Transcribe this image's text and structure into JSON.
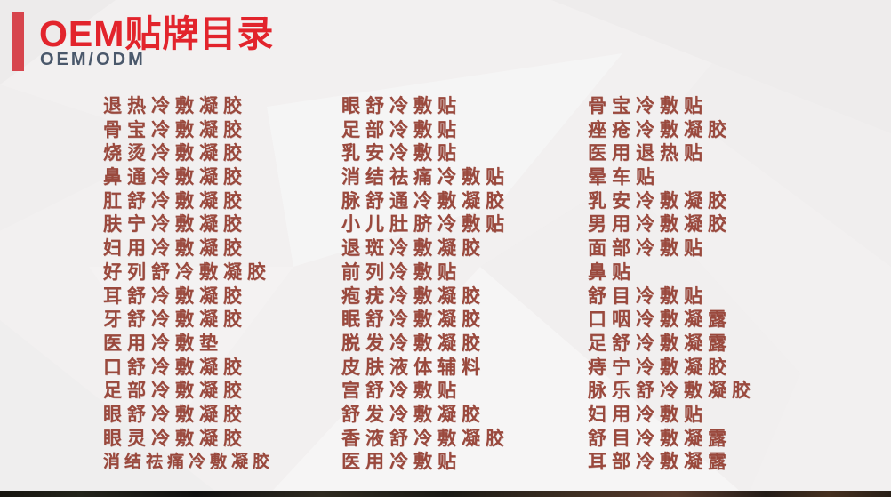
{
  "header": {
    "title": "OEM贴牌目录",
    "subtitle": "OEM/ODM"
  },
  "catalog": {
    "columns": [
      {
        "items": [
          "退热冷敷凝胶",
          "骨宝冷敷凝胶",
          "烧烫冷敷凝胶",
          "鼻通冷敷凝胶",
          "肛舒冷敷凝胶",
          "肤宁冷敷凝胶",
          "妇用冷敷凝胶",
          "好列舒冷敷凝胶",
          "耳舒冷敷凝胶",
          "牙舒冷敷凝胶",
          "医用冷敷垫",
          "口舒冷敷凝胶",
          "足部冷敷凝胶",
          "眼舒冷敷凝胶",
          "眼灵冷敷凝胶",
          "消结祛痛冷敷凝胶"
        ]
      },
      {
        "items": [
          "眼舒冷敷贴",
          "足部冷敷贴",
          "乳安冷敷贴",
          "消结祛痛冷敷贴",
          "脉舒通冷敷凝胶",
          "小儿肚脐冷敷贴",
          "退斑冷敷凝胶",
          "前列冷敷贴",
          "疱疣冷敷凝胶",
          "眠舒冷敷凝胶",
          "脱发冷敷凝胶",
          "皮肤液体辅料",
          "宫舒冷敷贴",
          "舒发冷敷凝胶",
          "香液舒冷敷凝胶",
          "医用冷敷贴"
        ]
      },
      {
        "items": [
          "骨宝冷敷贴",
          "痤疮冷敷凝胶",
          "医用退热贴",
          "晕车贴",
          "乳安冷敷凝胶",
          "男用冷敷凝胶",
          "面部冷敷贴",
          "鼻贴",
          "舒目冷敷贴",
          "口咽冷敷凝露",
          "足舒冷敷凝露",
          "痔宁冷敷凝胶",
          "脉乐舒冷敷凝胶",
          "妇用冷敷贴",
          "舒目冷敷凝露",
          "耳部冷敷凝露"
        ]
      }
    ]
  },
  "colors": {
    "title_red": "#e2242c",
    "bar_red": "#d7454d",
    "subtitle_gray": "#4a586b",
    "item_text": "#9a493d",
    "background": "#f2f0f0"
  }
}
